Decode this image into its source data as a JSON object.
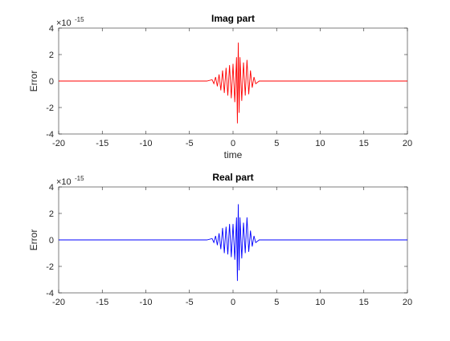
{
  "chart_data": [
    {
      "type": "line",
      "title": "Imag part",
      "xlabel": "time",
      "ylabel": "Error",
      "xlim": [
        -20,
        20
      ],
      "ylim": [
        -4e-15,
        4e-15
      ],
      "x_ticks": [
        "-20",
        "-15",
        "-10",
        "-5",
        "0",
        "5",
        "10",
        "15",
        "20"
      ],
      "y_ticks": [
        "4",
        "2",
        "0",
        "-2",
        "-4"
      ],
      "y_exponent_base": "×10",
      "y_exponent_power": "-15",
      "color": "#ff0000",
      "series": [
        {
          "x": [
            -20,
            -3,
            -2.4,
            -2.2,
            -2.0,
            -1.8,
            -1.6,
            -1.4,
            -1.2,
            -1.0,
            -0.8,
            -0.6,
            -0.4,
            -0.2,
            0,
            0.2,
            0.4,
            0.5,
            0.6,
            0.7,
            0.8,
            1.0,
            1.2,
            1.4,
            1.6,
            1.8,
            2.0,
            2.2,
            2.4,
            2.6,
            3,
            20
          ],
          "y": [
            0,
            0,
            1e-16,
            -2e-16,
            3e-16,
            -4e-16,
            5e-16,
            -7e-16,
            8e-16,
            -9e-16,
            1e-15,
            -1.1e-15,
            1.2e-15,
            -1.3e-15,
            1.3e-15,
            -1.6e-15,
            1.8e-15,
            -3.2e-15,
            2.9e-15,
            -2.4e-15,
            1.8e-15,
            -1.5e-15,
            1.4e-15,
            -1.1e-15,
            1.6e-15,
            -1e-15,
            8e-16,
            -5e-16,
            3e-16,
            -2e-16,
            0,
            0
          ]
        }
      ]
    },
    {
      "type": "line",
      "title": "Real part",
      "xlabel": "",
      "ylabel": "Error",
      "xlim": [
        -20,
        20
      ],
      "ylim": [
        -4e-15,
        4e-15
      ],
      "x_ticks": [
        "-20",
        "-15",
        "-10",
        "-5",
        "0",
        "5",
        "10",
        "15",
        "20"
      ],
      "y_ticks": [
        "4",
        "2",
        "0",
        "-2",
        "-4"
      ],
      "y_exponent_base": "×10",
      "y_exponent_power": "-15",
      "color": "#0000ff",
      "series": [
        {
          "x": [
            -20,
            -3,
            -2.4,
            -2.2,
            -2.0,
            -1.8,
            -1.6,
            -1.4,
            -1.2,
            -1.0,
            -0.8,
            -0.6,
            -0.4,
            -0.2,
            0,
            0.2,
            0.4,
            0.5,
            0.6,
            0.7,
            0.8,
            1.0,
            1.2,
            1.4,
            1.6,
            1.8,
            2.0,
            2.2,
            2.4,
            2.6,
            3,
            20
          ],
          "y": [
            0,
            0,
            1e-16,
            -2e-16,
            3e-16,
            -4e-16,
            5e-16,
            -7e-16,
            9e-16,
            -1e-15,
            1e-15,
            -1.1e-15,
            1.2e-15,
            -1.3e-15,
            1.2e-15,
            -1.5e-15,
            1.7e-15,
            -3.1e-15,
            2.7e-15,
            -2.3e-15,
            1.7e-15,
            -1.4e-15,
            1.3e-15,
            -1e-15,
            1.7e-15,
            -9e-16,
            7e-16,
            -5e-16,
            3e-16,
            -2e-16,
            0,
            0
          ]
        }
      ]
    }
  ]
}
